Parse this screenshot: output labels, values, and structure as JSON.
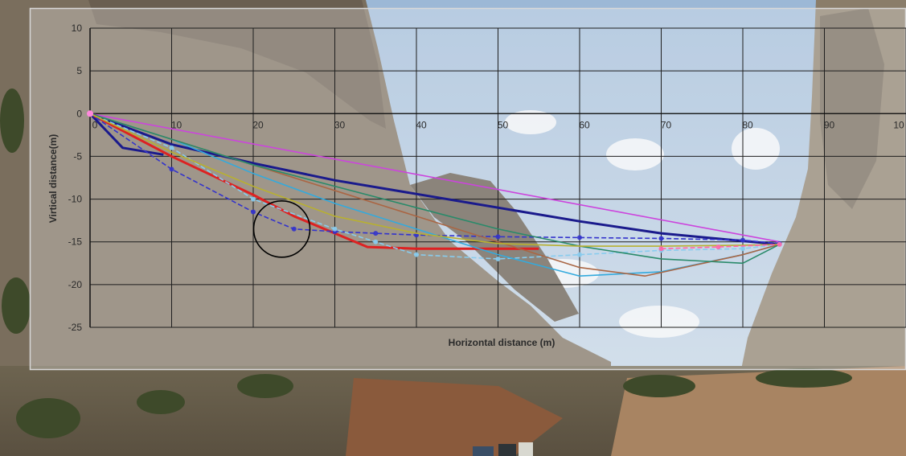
{
  "chart_data": {
    "type": "line",
    "xlabel": "Horizontal distance (m)",
    "ylabel": "Virtical distance(m)",
    "xlim": [
      0,
      100
    ],
    "ylim": [
      -25,
      10
    ],
    "x_ticks": [
      "0",
      "10",
      "20",
      "30",
      "40",
      "50",
      "60",
      "70",
      "80",
      "90",
      "10"
    ],
    "y_ticks": [
      "10",
      "5",
      "0",
      "-5",
      "-10",
      "-15",
      "-20",
      "-25"
    ],
    "grid": true,
    "legend": "none",
    "annotation": "circle",
    "annotation_center": [
      23.5,
      -13.5
    ],
    "series": [
      {
        "color": "#cc44dd",
        "marker": "none",
        "x": [
          0,
          84.5
        ],
        "y": [
          0,
          -15.0
        ]
      },
      {
        "color": "#1a1a8c",
        "marker": "none",
        "x": [
          0,
          10,
          20,
          30,
          40,
          50,
          60,
          70,
          80,
          84.5
        ],
        "y": [
          0,
          -3.6,
          -5.8,
          -7.8,
          -9.4,
          -11.0,
          -12.6,
          -14.0,
          -14.9,
          -15.3
        ]
      },
      {
        "color": "#1a1a8c",
        "marker": "none",
        "x": [
          0,
          4,
          9
        ],
        "y": [
          0,
          -4.0,
          -4.8
        ]
      },
      {
        "color": "#dd2222",
        "marker": "none",
        "x": [
          0,
          10,
          20,
          25,
          30,
          34,
          40,
          50,
          55
        ],
        "y": [
          0,
          -5.0,
          -9.5,
          -12.0,
          -14.0,
          -15.6,
          -15.8,
          -15.8,
          -15.8
        ]
      },
      {
        "color": "#3333cc",
        "marker": "dot",
        "x": [
          0,
          10,
          20,
          25,
          30,
          35,
          40,
          50,
          60,
          70,
          80,
          84.5
        ],
        "y": [
          0,
          -6.5,
          -11.5,
          -13.5,
          -13.8,
          -14.0,
          -14.2,
          -14.4,
          -14.5,
          -14.6,
          -14.8,
          -15.2
        ]
      },
      {
        "color": "#88ccee",
        "marker": "dot",
        "x": [
          0,
          10,
          20,
          30,
          35,
          40,
          50,
          60,
          70,
          80,
          84.5
        ],
        "y": [
          0,
          -4.0,
          -10.0,
          -13.5,
          -15.0,
          -16.5,
          -17.0,
          -16.5,
          -16.0,
          -15.8,
          -15.3
        ]
      },
      {
        "color": "#33aadd",
        "marker": "none",
        "x": [
          0,
          10,
          20,
          30,
          40,
          50,
          60,
          70,
          80,
          84.5
        ],
        "y": [
          0,
          -3.0,
          -7.0,
          -10.5,
          -13.5,
          -16.5,
          -19.0,
          -18.5,
          -16.5,
          -15.3
        ]
      },
      {
        "color": "#aa6644",
        "marker": "none",
        "x": [
          0,
          10,
          20,
          30,
          40,
          50,
          60,
          68,
          80,
          84.5
        ],
        "y": [
          0,
          -3.0,
          -6.0,
          -9.0,
          -12.0,
          -15.0,
          -18.0,
          -19.0,
          -16.5,
          -15.3
        ]
      },
      {
        "color": "#2a8a6a",
        "marker": "none",
        "x": [
          0,
          10,
          20,
          30,
          40,
          50,
          60,
          70,
          80,
          84.5
        ],
        "y": [
          0,
          -3.0,
          -6.0,
          -8.5,
          -11.0,
          -13.5,
          -15.5,
          -17.0,
          -17.5,
          -15.3
        ]
      },
      {
        "color": "#b8b030",
        "marker": "none",
        "x": [
          0,
          10,
          20,
          30,
          40,
          50,
          60,
          70,
          80,
          84.5
        ],
        "y": [
          0,
          -4.5,
          -8.5,
          -12.0,
          -14.0,
          -15.2,
          -15.5,
          -15.5,
          -15.4,
          -15.3
        ]
      },
      {
        "color": "#ff66aa",
        "marker": "dot",
        "x": [
          70,
          77,
          84.5
        ],
        "y": [
          -15.8,
          -15.6,
          -15.3
        ]
      }
    ]
  }
}
